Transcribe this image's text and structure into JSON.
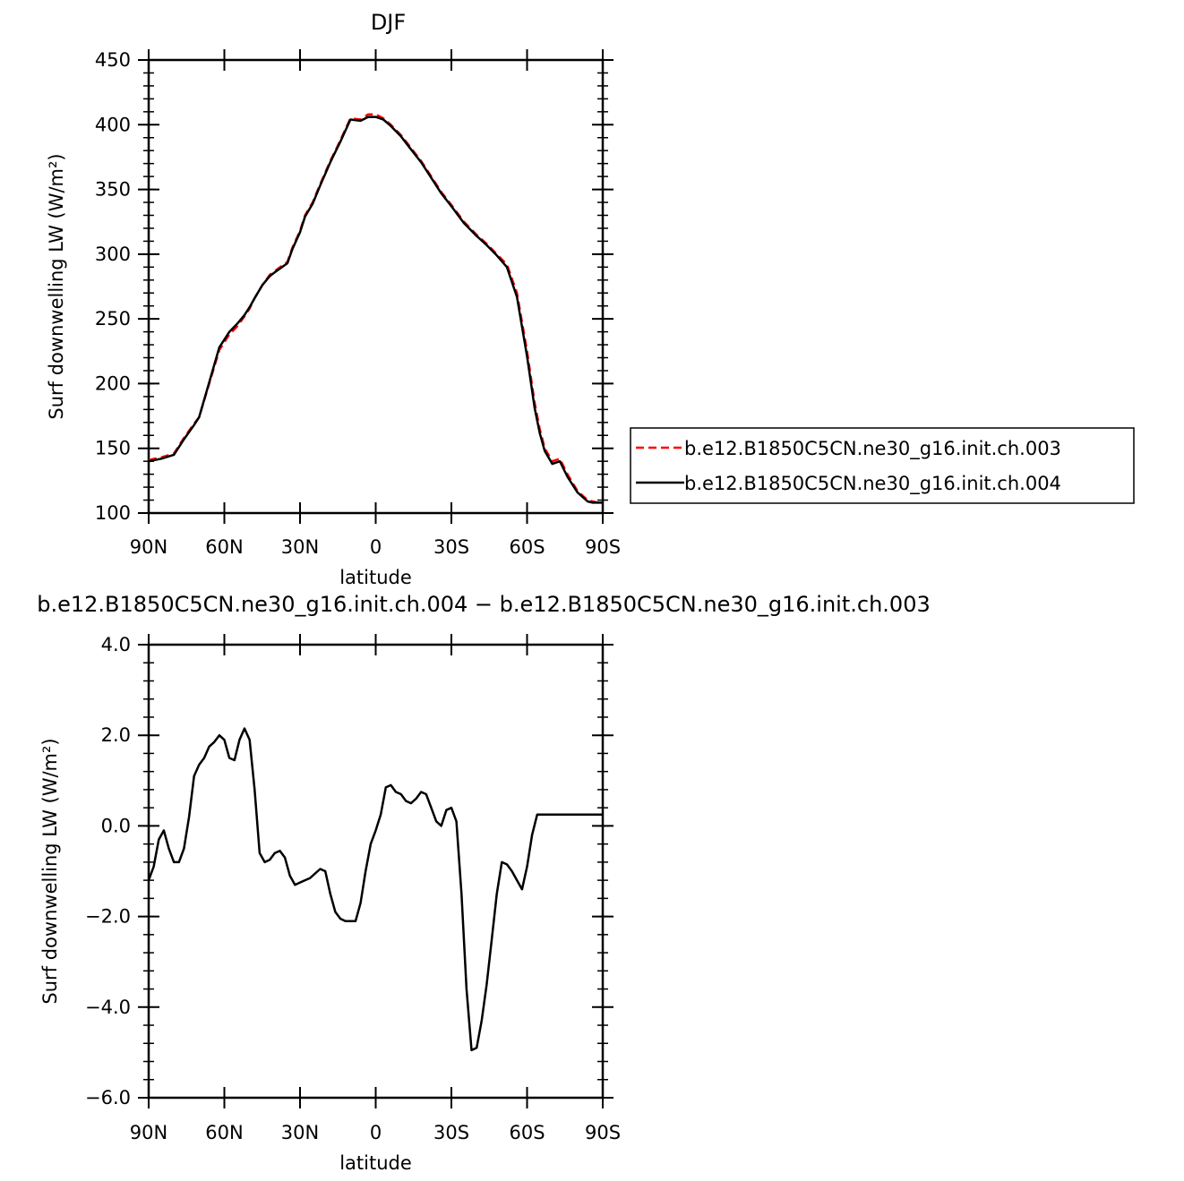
{
  "chart_data": [
    {
      "type": "line",
      "title": "DJF",
      "xlabel": "latitude",
      "ylabel": "Surf  downwelling LW  (W/m²)",
      "xlim": [
        90,
        -90
      ],
      "ylim": [
        100,
        450
      ],
      "x_ticks": [
        90,
        60,
        30,
        0,
        -30,
        -60,
        -90
      ],
      "x_tick_labels": [
        "90N",
        "60N",
        "30N",
        "0",
        "30S",
        "60S",
        "90S"
      ],
      "y_ticks": [
        100,
        150,
        200,
        250,
        300,
        350,
        400,
        450
      ],
      "y_tick_labels": [
        "100",
        "150",
        "200",
        "250",
        "300",
        "350",
        "400",
        "450"
      ],
      "legend_position": "right",
      "series": [
        {
          "name": "b.e12.B1850C5CN.ne30_g16.init.ch.003",
          "color": "#ff0000",
          "dash": "dashed",
          "x": [
            90,
            85,
            80,
            76,
            72,
            70,
            66,
            62,
            60,
            58,
            55,
            52,
            50,
            48,
            45,
            42,
            40,
            35,
            33,
            30,
            28,
            25,
            22,
            18,
            14,
            10,
            6,
            3,
            0,
            -3,
            -6,
            -10,
            -14,
            -18,
            -22,
            -26,
            -30,
            -35,
            -40,
            -44,
            -48,
            -52,
            -56,
            -60,
            -63,
            -65,
            -67,
            -70,
            -73,
            -76,
            -80,
            -84,
            -86,
            -88,
            -90
          ],
          "y": [
            141,
            143,
            146,
            158,
            169,
            174,
            200,
            226,
            232,
            238,
            244,
            252,
            258,
            266,
            276,
            284,
            287,
            294,
            305,
            318,
            330,
            340,
            354,
            372,
            388,
            405,
            404,
            408,
            408,
            405,
            400,
            392,
            382,
            372,
            360,
            348,
            338,
            325,
            315,
            308,
            300,
            292,
            270,
            225,
            185,
            165,
            150,
            140,
            142,
            130,
            117,
            110,
            109,
            108,
            108
          ]
        },
        {
          "name": "b.e12.B1850C5CN.ne30_g16.init.ch.004",
          "color": "#000000",
          "dash": "solid",
          "x": [
            90,
            85,
            80,
            76,
            72,
            70,
            66,
            62,
            60,
            58,
            55,
            52,
            50,
            48,
            45,
            42,
            40,
            35,
            33,
            30,
            28,
            25,
            22,
            18,
            14,
            10,
            6,
            3,
            0,
            -3,
            -6,
            -10,
            -14,
            -18,
            -22,
            -26,
            -30,
            -35,
            -40,
            -44,
            -48,
            -52,
            -56,
            -60,
            -63,
            -65,
            -67,
            -70,
            -73,
            -76,
            -80,
            -84,
            -86,
            -88,
            -90
          ],
          "y": [
            140,
            142,
            145,
            157,
            168,
            174,
            201,
            228,
            234,
            240,
            246,
            253,
            259,
            266,
            276,
            283,
            286,
            293,
            304,
            317,
            329,
            339,
            353,
            371,
            387,
            404,
            403,
            406,
            406,
            404,
            399,
            391,
            381,
            371,
            359,
            347,
            337,
            324,
            314,
            307,
            299,
            290,
            267,
            221,
            181,
            162,
            148,
            138,
            140,
            128,
            116,
            109,
            108,
            108,
            108
          ]
        }
      ]
    },
    {
      "type": "line",
      "title": "b.e12.B1850C5CN.ne30_g16.init.ch.004 − b.e12.B1850C5CN.ne30_g16.init.ch.003",
      "xlabel": "latitude",
      "ylabel": "Surf  downwelling LW  (W/m²)",
      "xlim": [
        90,
        -90
      ],
      "ylim": [
        -6.0,
        4.0
      ],
      "x_ticks": [
        90,
        60,
        30,
        0,
        -30,
        -60,
        -90
      ],
      "x_tick_labels": [
        "90N",
        "60N",
        "30N",
        "0",
        "30S",
        "60S",
        "90S"
      ],
      "y_ticks": [
        -6.0,
        -4.0,
        -2.0,
        0.0,
        2.0,
        4.0
      ],
      "y_tick_labels": [
        "−6.0",
        "−4.0",
        "−2.0",
        "0.0",
        "2.0",
        "4.0"
      ],
      "series": [
        {
          "color": "#000000",
          "dash": "solid",
          "x": [
            90,
            88,
            86,
            84,
            82,
            80,
            78,
            76,
            74,
            72,
            70,
            68,
            66,
            64,
            62,
            60,
            58,
            56,
            54,
            52,
            50,
            48,
            46,
            44,
            42,
            40,
            38,
            36,
            34,
            32,
            30,
            28,
            26,
            24,
            22,
            20,
            18,
            16,
            14,
            12,
            10,
            8,
            6,
            4,
            2,
            0,
            -2,
            -4,
            -6,
            -8,
            -10,
            -12,
            -14,
            -16,
            -18,
            -20,
            -22,
            -24,
            -26,
            -28,
            -30,
            -32,
            -34,
            -36,
            -38,
            -40,
            -42,
            -44,
            -46,
            -48,
            -50,
            -52,
            -54,
            -56,
            -58,
            -60,
            -62,
            -64,
            -66,
            -68,
            -70,
            -72,
            -74,
            -76,
            -78,
            -80,
            -82,
            -84,
            -86,
            -88,
            -90
          ],
          "y": [
            -1.2,
            -0.9,
            -0.3,
            -0.1,
            -0.5,
            -0.8,
            -0.8,
            -0.5,
            0.2,
            1.1,
            1.35,
            1.5,
            1.75,
            1.85,
            2.0,
            1.9,
            1.5,
            1.45,
            1.9,
            2.15,
            1.9,
            0.8,
            -0.6,
            -0.8,
            -0.75,
            -0.6,
            -0.55,
            -0.7,
            -1.1,
            -1.3,
            -1.25,
            -1.2,
            -1.15,
            -1.05,
            -0.95,
            -1.0,
            -1.5,
            -1.9,
            -2.05,
            -2.1,
            -2.1,
            -2.1,
            -1.7,
            -1.0,
            -0.4,
            -0.1,
            0.25,
            0.85,
            0.9,
            0.75,
            0.7,
            0.55,
            0.5,
            0.6,
            0.75,
            0.7,
            0.4,
            0.1,
            0.0,
            0.35,
            0.4,
            0.1,
            -1.5,
            -3.6,
            -4.95,
            -4.9,
            -4.3,
            -3.5,
            -2.5,
            -1.5,
            -0.8,
            -0.85,
            -1.0,
            -1.2,
            -1.4,
            -0.9,
            -0.2,
            0.25,
            0.25,
            0.25,
            0.25,
            0.25,
            0.25,
            0.25,
            0.25,
            0.25,
            0.25,
            0.25,
            0.25,
            0.25,
            0.25
          ]
        }
      ]
    }
  ]
}
